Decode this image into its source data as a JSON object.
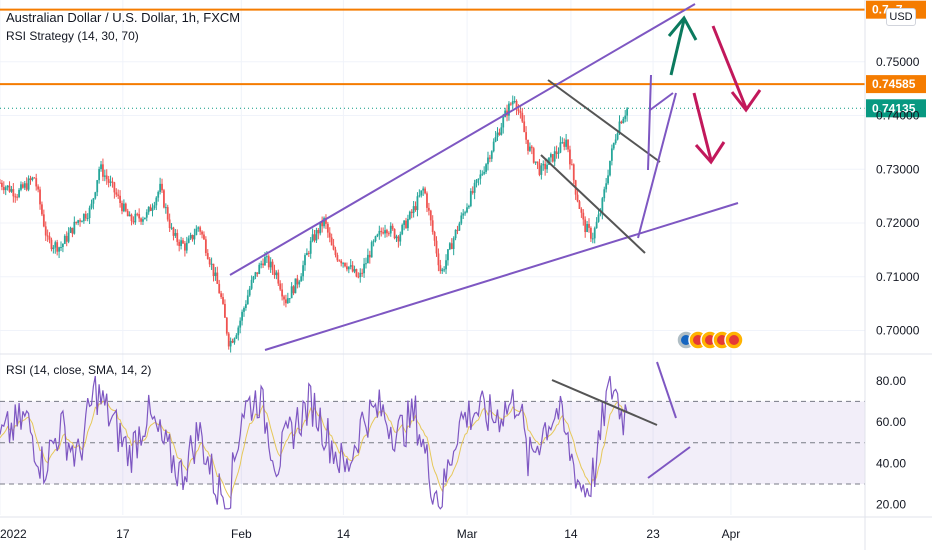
{
  "header": {
    "title": "Australian Dollar / U.S. Dollar, 1h, FXCM",
    "strategy": "RSI Strategy (14, 30, 70)",
    "currency": "USD"
  },
  "rsi_panel": {
    "title": "RSI (14, close, SMA, 14, 2)"
  },
  "colors": {
    "candle_up": "#26a69a",
    "candle_down": "#ef5350",
    "trendline": "#7e57c2",
    "resistance": "#f57c00",
    "rsi_line": "#7e57c2",
    "rsi_sma": "#e6c85a",
    "current_price": "#089981",
    "arrow_up": "#0b7a5e",
    "arrow_down": "#c2185b",
    "pattern_line": "#555555"
  },
  "chart_data": [
    {
      "type": "candlestick",
      "title": "Australian Dollar / U.S. Dollar, 1h, FXCM",
      "ylim": [
        0.696,
        0.7615
      ],
      "y_ticks": [
        "0.75000",
        "0.74000",
        "0.73000",
        "0.72000",
        "0.71000",
        "0.70000"
      ],
      "y_tick_values": [
        0.75,
        0.74,
        0.73,
        0.72,
        0.71,
        0.7
      ],
      "x_ticks": [
        "2022",
        "17",
        "Feb",
        "14",
        "Mar",
        "14",
        "23",
        "Apr"
      ],
      "x_tick_positions": [
        0,
        0.142,
        0.279,
        0.397,
        0.54,
        0.66,
        0.755,
        0.845
      ],
      "price_labels": [
        {
          "text": "0.7   7",
          "value": 0.7597,
          "color": "#f57c00"
        },
        {
          "text": "0.74585",
          "value": 0.74585,
          "color": "#f57c00"
        },
        {
          "text": "0.74135",
          "value": 0.74135,
          "color": "#089981"
        }
      ],
      "horizontal_levels": [
        {
          "value": 0.7597,
          "style": "solid",
          "color": "#f57c00"
        },
        {
          "value": 0.74585,
          "style": "solid",
          "color": "#f57c00"
        },
        {
          "value": 0.74135,
          "style": "dotted",
          "color": "#089981"
        }
      ],
      "price_path": [
        {
          "t": 0.0,
          "p": 0.7275
        },
        {
          "t": 0.02,
          "p": 0.7255
        },
        {
          "t": 0.04,
          "p": 0.7285
        },
        {
          "t": 0.055,
          "p": 0.7165
        },
        {
          "t": 0.07,
          "p": 0.7155
        },
        {
          "t": 0.09,
          "p": 0.7205
        },
        {
          "t": 0.105,
          "p": 0.7225
        },
        {
          "t": 0.115,
          "p": 0.7305
        },
        {
          "t": 0.13,
          "p": 0.7265
        },
        {
          "t": 0.15,
          "p": 0.7205
        },
        {
          "t": 0.17,
          "p": 0.7215
        },
        {
          "t": 0.185,
          "p": 0.7265
        },
        {
          "t": 0.2,
          "p": 0.7175
        },
        {
          "t": 0.215,
          "p": 0.7155
        },
        {
          "t": 0.23,
          "p": 0.7195
        },
        {
          "t": 0.24,
          "p": 0.7145
        },
        {
          "t": 0.255,
          "p": 0.7065
        },
        {
          "t": 0.265,
          "p": 0.6975
        },
        {
          "t": 0.275,
          "p": 0.7005
        },
        {
          "t": 0.29,
          "p": 0.7085
        },
        {
          "t": 0.305,
          "p": 0.7135
        },
        {
          "t": 0.32,
          "p": 0.7105
        },
        {
          "t": 0.33,
          "p": 0.7055
        },
        {
          "t": 0.345,
          "p": 0.7095
        },
        {
          "t": 0.36,
          "p": 0.7165
        },
        {
          "t": 0.375,
          "p": 0.7205
        },
        {
          "t": 0.385,
          "p": 0.7145
        },
        {
          "t": 0.4,
          "p": 0.7125
        },
        {
          "t": 0.415,
          "p": 0.7095
        },
        {
          "t": 0.43,
          "p": 0.7155
        },
        {
          "t": 0.445,
          "p": 0.7195
        },
        {
          "t": 0.46,
          "p": 0.7175
        },
        {
          "t": 0.475,
          "p": 0.7215
        },
        {
          "t": 0.49,
          "p": 0.7265
        },
        {
          "t": 0.5,
          "p": 0.7185
        },
        {
          "t": 0.51,
          "p": 0.7105
        },
        {
          "t": 0.525,
          "p": 0.7175
        },
        {
          "t": 0.54,
          "p": 0.7235
        },
        {
          "t": 0.555,
          "p": 0.7285
        },
        {
          "t": 0.57,
          "p": 0.7345
        },
        {
          "t": 0.585,
          "p": 0.7405
        },
        {
          "t": 0.595,
          "p": 0.7435
        },
        {
          "t": 0.61,
          "p": 0.7345
        },
        {
          "t": 0.625,
          "p": 0.7295
        },
        {
          "t": 0.64,
          "p": 0.7325
        },
        {
          "t": 0.655,
          "p": 0.7355
        },
        {
          "t": 0.665,
          "p": 0.7265
        },
        {
          "t": 0.675,
          "p": 0.7195
        },
        {
          "t": 0.685,
          "p": 0.7175
        },
        {
          "t": 0.695,
          "p": 0.7225
        },
        {
          "t": 0.705,
          "p": 0.7315
        },
        {
          "t": 0.715,
          "p": 0.7385
        },
        {
          "t": 0.725,
          "p": 0.7413
        }
      ]
    },
    {
      "type": "line",
      "title": "RSI (14, close, SMA, 14, 2)",
      "ylim": [
        15,
        92
      ],
      "y_ticks": [
        "80.00",
        "60.00",
        "40.00",
        "20.00"
      ],
      "y_tick_values": [
        80,
        60,
        40,
        20
      ],
      "bands": {
        "upper": 70,
        "middle": 50,
        "lower": 30
      },
      "series": [
        {
          "values_path": [
            {
              "t": 0.0,
              "v": 52
            },
            {
              "t": 0.03,
              "v": 62
            },
            {
              "t": 0.05,
              "v": 38
            },
            {
              "t": 0.07,
              "v": 58
            },
            {
              "t": 0.09,
              "v": 42
            },
            {
              "t": 0.11,
              "v": 76
            },
            {
              "t": 0.13,
              "v": 60
            },
            {
              "t": 0.15,
              "v": 44
            },
            {
              "t": 0.17,
              "v": 64
            },
            {
              "t": 0.19,
              "v": 48
            },
            {
              "t": 0.21,
              "v": 34
            },
            {
              "t": 0.23,
              "v": 56
            },
            {
              "t": 0.25,
              "v": 28
            },
            {
              "t": 0.265,
              "v": 24
            },
            {
              "t": 0.28,
              "v": 66
            },
            {
              "t": 0.3,
              "v": 72
            },
            {
              "t": 0.32,
              "v": 40
            },
            {
              "t": 0.34,
              "v": 58
            },
            {
              "t": 0.36,
              "v": 70
            },
            {
              "t": 0.38,
              "v": 52
            },
            {
              "t": 0.4,
              "v": 36
            },
            {
              "t": 0.42,
              "v": 62
            },
            {
              "t": 0.44,
              "v": 66
            },
            {
              "t": 0.46,
              "v": 54
            },
            {
              "t": 0.48,
              "v": 64
            },
            {
              "t": 0.5,
              "v": 30
            },
            {
              "t": 0.51,
              "v": 22
            },
            {
              "t": 0.53,
              "v": 60
            },
            {
              "t": 0.55,
              "v": 66
            },
            {
              "t": 0.57,
              "v": 62
            },
            {
              "t": 0.59,
              "v": 68
            },
            {
              "t": 0.6,
              "v": 72
            },
            {
              "t": 0.61,
              "v": 40
            },
            {
              "t": 0.63,
              "v": 58
            },
            {
              "t": 0.645,
              "v": 66
            },
            {
              "t": 0.66,
              "v": 44
            },
            {
              "t": 0.67,
              "v": 30
            },
            {
              "t": 0.68,
              "v": 28
            },
            {
              "t": 0.69,
              "v": 40
            },
            {
              "t": 0.7,
              "v": 70
            },
            {
              "t": 0.71,
              "v": 78
            },
            {
              "t": 0.72,
              "v": 62
            },
            {
              "t": 0.725,
              "v": 68
            }
          ]
        }
      ]
    }
  ]
}
